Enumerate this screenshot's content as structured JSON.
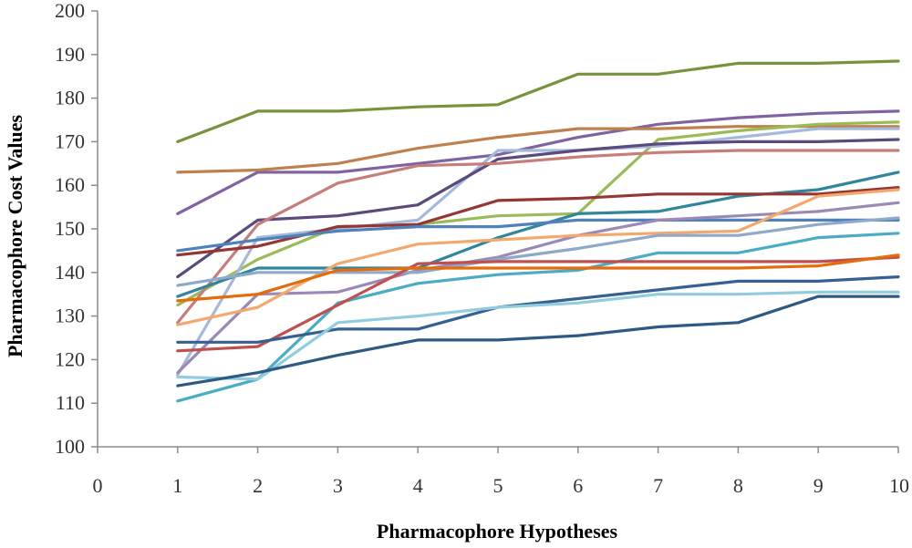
{
  "chart_data": {
    "type": "line",
    "xlabel": "Pharmacophore Hypotheses",
    "ylabel": "Pharmacophore Cost Values",
    "xlim": [
      0,
      10
    ],
    "ylim": [
      100,
      200
    ],
    "x_ticks": [
      0,
      1,
      2,
      3,
      4,
      5,
      6,
      7,
      8,
      9,
      10
    ],
    "y_ticks": [
      100,
      110,
      120,
      130,
      140,
      150,
      160,
      170,
      180,
      190,
      200
    ],
    "grid": false,
    "legend": "none",
    "x": [
      1,
      2,
      3,
      4,
      5,
      6,
      7,
      8,
      9,
      10
    ],
    "series": [
      {
        "color": "#77933C",
        "values": [
          170,
          177,
          177,
          178,
          178.5,
          185.5,
          185.5,
          188,
          188,
          188.5
        ]
      },
      {
        "color": "#8064A2",
        "values": [
          153.5,
          163,
          163,
          165,
          167,
          171,
          174,
          175.5,
          176.5,
          177
        ]
      },
      {
        "color": "#C0804D",
        "values": [
          163,
          163.5,
          165,
          168.5,
          171,
          173,
          173,
          173.5,
          173.5,
          173.5
        ]
      },
      {
        "color": "#9BBB59",
        "values": [
          132.5,
          143,
          150.5,
          151,
          153,
          153.5,
          170.5,
          172.5,
          174,
          174.5
        ]
      },
      {
        "color": "#A5B9DA",
        "values": [
          116.5,
          148,
          150,
          152,
          168,
          168,
          169,
          171,
          173,
          173
        ]
      },
      {
        "color": "#5B4A7E",
        "values": [
          139,
          152,
          153,
          155.5,
          166,
          168,
          169.5,
          170,
          170,
          170.5
        ]
      },
      {
        "color": "#C67E7B",
        "values": [
          128.5,
          151,
          160.5,
          164.5,
          165,
          166.5,
          167.5,
          168,
          168,
          168
        ]
      },
      {
        "color": "#31859C",
        "values": [
          134.5,
          141,
          141,
          141,
          148,
          153.5,
          154,
          157.5,
          159,
          163
        ]
      },
      {
        "color": "#943634",
        "values": [
          144,
          146,
          150.5,
          151,
          156.5,
          157,
          158,
          158,
          158,
          159.5
        ]
      },
      {
        "color": "#4F81BD",
        "values": [
          145,
          147.5,
          149.5,
          150.5,
          150.5,
          152,
          152,
          152,
          152,
          152
        ]
      },
      {
        "color": "#9B8AB5",
        "values": [
          117,
          135,
          135.5,
          140.5,
          143.5,
          148.5,
          152,
          153,
          154,
          156
        ]
      },
      {
        "color": "#F3A96E",
        "values": [
          128,
          132,
          142,
          146.5,
          147.5,
          148.5,
          149,
          149.5,
          157.5,
          159
        ]
      },
      {
        "color": "#8EA9C9",
        "values": [
          137,
          140,
          140,
          140,
          143,
          145.5,
          148.5,
          148.5,
          151,
          152.5
        ]
      },
      {
        "color": "#4BACC6",
        "values": [
          110.5,
          115.5,
          133,
          137.5,
          139.5,
          140.5,
          144.5,
          144.5,
          148,
          149
        ]
      },
      {
        "color": "#C0504D",
        "values": [
          122,
          123,
          132.5,
          142,
          142.5,
          142.5,
          142.5,
          142.5,
          142.5,
          143.5
        ]
      },
      {
        "color": "#E46C0A",
        "values": [
          133.5,
          135,
          140.5,
          141,
          141,
          141,
          141,
          141,
          141.5,
          144
        ]
      },
      {
        "color": "#376092",
        "values": [
          124,
          124,
          127,
          127,
          132,
          134,
          136,
          138,
          138,
          139
        ]
      },
      {
        "color": "#93CDDD",
        "values": [
          116,
          115.5,
          128.5,
          130,
          132,
          133,
          135,
          135,
          135.5,
          135.5
        ]
      },
      {
        "color": "#2E5984",
        "values": [
          114,
          117,
          121,
          124.5,
          124.5,
          125.5,
          127.5,
          128.5,
          134.5,
          134.5
        ]
      }
    ]
  }
}
